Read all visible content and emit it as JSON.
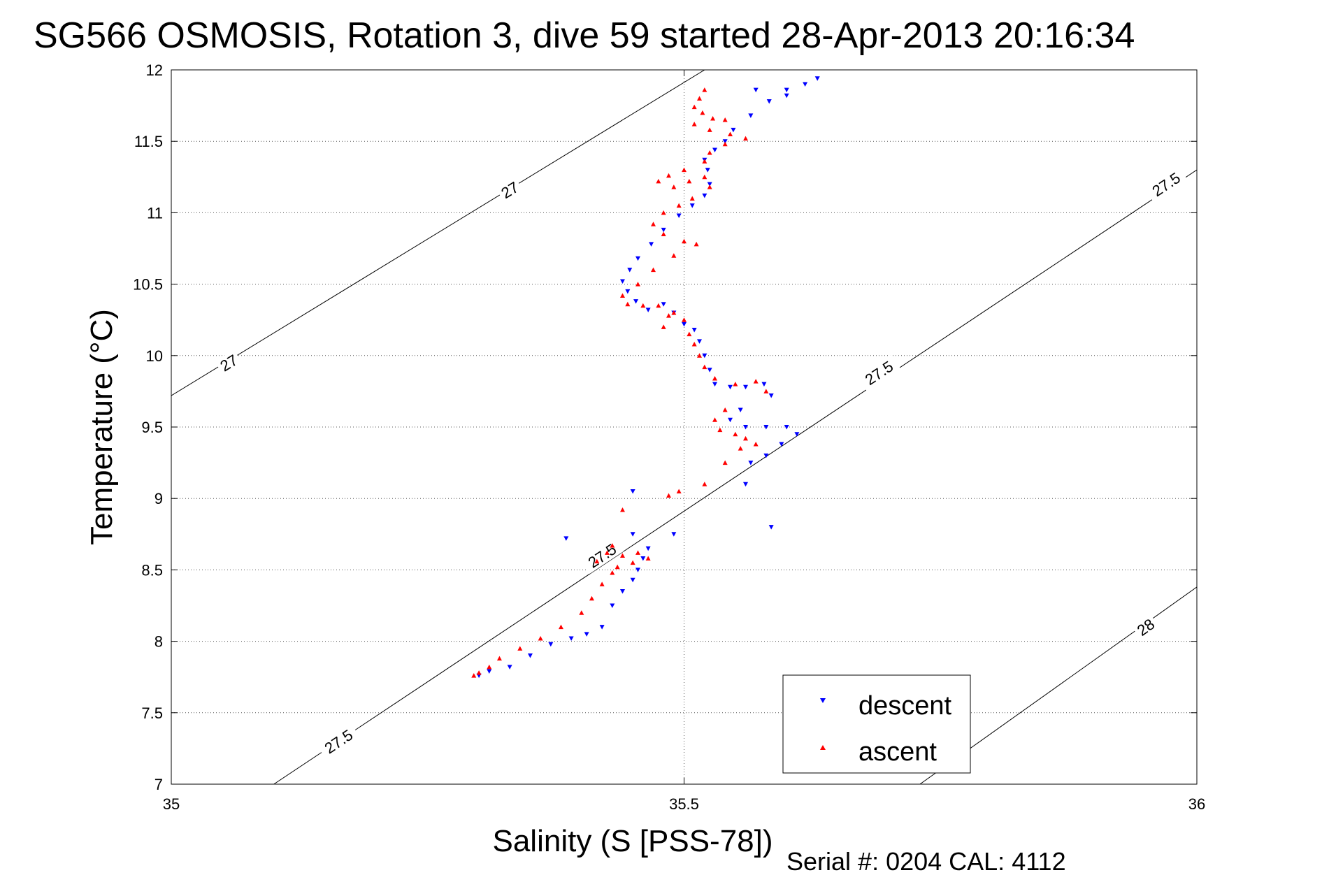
{
  "chart_data": {
    "type": "scatter",
    "title": "SG566 OSMOSIS, Rotation 3, dive 59 started 28-Apr-2013 20:16:34",
    "xlabel": "Salinity (S [PSS-78])",
    "ylabel": "Temperature (°C)",
    "xlim": [
      35,
      36
    ],
    "ylim": [
      7,
      12
    ],
    "x_ticks": [
      "35",
      "35.5",
      "36"
    ],
    "y_ticks": [
      "7",
      "7.5",
      "8",
      "8.5",
      "9",
      "9.5",
      "10",
      "10.5",
      "11",
      "11.5",
      "12"
    ],
    "x_tick_values": [
      35,
      35.5,
      36
    ],
    "y_tick_values": [
      7,
      7.5,
      8,
      8.5,
      9,
      9.5,
      10,
      10.5,
      11,
      11.5,
      12
    ],
    "grid": true,
    "grid_style": "dotted",
    "legend_position": "bottom-right",
    "density_contours": [
      {
        "sigma": 27,
        "label": "27",
        "points": [
          [
            35.0,
            9.72
          ],
          [
            35.52,
            12.0
          ]
        ],
        "label_at": [
          [
            35.056,
            9.95
          ],
          [
            35.33,
            11.16
          ]
        ]
      },
      {
        "sigma": 27.5,
        "label": "27.5",
        "points": [
          [
            35.1,
            7.0
          ],
          [
            36.0,
            11.3
          ]
        ],
        "label_at": [
          [
            35.163,
            7.3
          ],
          [
            35.42,
            8.6
          ],
          [
            35.69,
            9.88
          ],
          [
            35.97,
            11.2
          ]
        ]
      },
      {
        "sigma": 28,
        "label": "28",
        "points": [
          [
            35.73,
            7.0
          ],
          [
            36.0,
            8.38
          ]
        ],
        "label_at": [
          [
            35.95,
            8.1
          ]
        ]
      }
    ],
    "series": [
      {
        "name": "descent",
        "color": "#0000ff",
        "marker": "triangle-down",
        "points": [
          [
            35.63,
            11.94
          ],
          [
            35.618,
            11.9
          ],
          [
            35.6,
            11.86
          ],
          [
            35.583,
            11.78
          ],
          [
            35.565,
            11.68
          ],
          [
            35.548,
            11.58
          ],
          [
            35.54,
            11.5
          ],
          [
            35.53,
            11.44
          ],
          [
            35.52,
            11.37
          ],
          [
            35.523,
            11.3
          ],
          [
            35.525,
            11.2
          ],
          [
            35.52,
            11.12
          ],
          [
            35.508,
            11.05
          ],
          [
            35.495,
            10.98
          ],
          [
            35.48,
            10.88
          ],
          [
            35.468,
            10.78
          ],
          [
            35.455,
            10.68
          ],
          [
            35.447,
            10.6
          ],
          [
            35.44,
            10.52
          ],
          [
            35.445,
            10.45
          ],
          [
            35.453,
            10.38
          ],
          [
            35.465,
            10.32
          ],
          [
            35.48,
            10.36
          ],
          [
            35.49,
            10.3
          ],
          [
            35.5,
            10.22
          ],
          [
            35.51,
            10.18
          ],
          [
            35.515,
            10.1
          ],
          [
            35.52,
            10.0
          ],
          [
            35.525,
            9.9
          ],
          [
            35.53,
            9.8
          ],
          [
            35.545,
            9.78
          ],
          [
            35.56,
            9.78
          ],
          [
            35.578,
            9.8
          ],
          [
            35.585,
            9.72
          ],
          [
            35.555,
            9.62
          ],
          [
            35.545,
            9.55
          ],
          [
            35.56,
            9.5
          ],
          [
            35.58,
            9.5
          ],
          [
            35.6,
            9.5
          ],
          [
            35.61,
            9.45
          ],
          [
            35.595,
            9.38
          ],
          [
            35.58,
            9.3
          ],
          [
            35.565,
            9.25
          ],
          [
            35.56,
            9.1
          ],
          [
            35.385,
            8.72
          ],
          [
            35.45,
            8.75
          ],
          [
            35.465,
            8.65
          ],
          [
            35.46,
            8.58
          ],
          [
            35.455,
            8.5
          ],
          [
            35.45,
            8.43
          ],
          [
            35.44,
            8.35
          ],
          [
            35.43,
            8.25
          ],
          [
            35.42,
            8.1
          ],
          [
            35.405,
            8.05
          ],
          [
            35.39,
            8.02
          ],
          [
            35.37,
            7.98
          ],
          [
            35.35,
            7.9
          ],
          [
            35.33,
            7.82
          ],
          [
            35.31,
            7.79
          ],
          [
            35.3,
            7.76
          ],
          [
            35.585,
            8.8
          ],
          [
            35.49,
            8.75
          ],
          [
            35.45,
            9.05
          ],
          [
            35.6,
            11.82
          ],
          [
            35.57,
            11.86
          ]
        ]
      },
      {
        "name": "ascent",
        "color": "#ff0000",
        "marker": "triangle-up",
        "points": [
          [
            35.52,
            11.86
          ],
          [
            35.515,
            11.8
          ],
          [
            35.51,
            11.74
          ],
          [
            35.518,
            11.7
          ],
          [
            35.528,
            11.66
          ],
          [
            35.54,
            11.65
          ],
          [
            35.51,
            11.62
          ],
          [
            35.525,
            11.58
          ],
          [
            35.545,
            11.55
          ],
          [
            35.56,
            11.52
          ],
          [
            35.54,
            11.48
          ],
          [
            35.525,
            11.42
          ],
          [
            35.52,
            11.36
          ],
          [
            35.5,
            11.3
          ],
          [
            35.485,
            11.26
          ],
          [
            35.475,
            11.22
          ],
          [
            35.49,
            11.18
          ],
          [
            35.505,
            11.22
          ],
          [
            35.52,
            11.25
          ],
          [
            35.525,
            11.18
          ],
          [
            35.508,
            11.1
          ],
          [
            35.495,
            11.05
          ],
          [
            35.48,
            11.0
          ],
          [
            35.47,
            10.92
          ],
          [
            35.48,
            10.85
          ],
          [
            35.5,
            10.8
          ],
          [
            35.512,
            10.78
          ],
          [
            35.49,
            10.7
          ],
          [
            35.47,
            10.6
          ],
          [
            35.455,
            10.5
          ],
          [
            35.44,
            10.42
          ],
          [
            35.445,
            10.36
          ],
          [
            35.46,
            10.35
          ],
          [
            35.475,
            10.35
          ],
          [
            35.485,
            10.28
          ],
          [
            35.48,
            10.2
          ],
          [
            35.49,
            10.3
          ],
          [
            35.5,
            10.25
          ],
          [
            35.505,
            10.15
          ],
          [
            35.51,
            10.08
          ],
          [
            35.515,
            10.0
          ],
          [
            35.52,
            9.92
          ],
          [
            35.53,
            9.84
          ],
          [
            35.55,
            9.8
          ],
          [
            35.57,
            9.82
          ],
          [
            35.58,
            9.75
          ],
          [
            35.54,
            9.62
          ],
          [
            35.53,
            9.55
          ],
          [
            35.535,
            9.48
          ],
          [
            35.55,
            9.45
          ],
          [
            35.56,
            9.42
          ],
          [
            35.57,
            9.38
          ],
          [
            35.555,
            9.35
          ],
          [
            35.54,
            9.25
          ],
          [
            35.52,
            9.1
          ],
          [
            35.495,
            9.05
          ],
          [
            35.485,
            9.02
          ],
          [
            35.44,
            8.92
          ],
          [
            35.43,
            8.67
          ],
          [
            35.425,
            8.62
          ],
          [
            35.44,
            8.6
          ],
          [
            35.455,
            8.62
          ],
          [
            35.465,
            8.58
          ],
          [
            35.45,
            8.55
          ],
          [
            35.435,
            8.52
          ],
          [
            35.415,
            8.56
          ],
          [
            35.43,
            8.48
          ],
          [
            35.42,
            8.4
          ],
          [
            35.41,
            8.3
          ],
          [
            35.4,
            8.2
          ],
          [
            35.38,
            8.1
          ],
          [
            35.36,
            8.02
          ],
          [
            35.34,
            7.95
          ],
          [
            35.32,
            7.88
          ],
          [
            35.31,
            7.82
          ],
          [
            35.3,
            7.78
          ],
          [
            35.295,
            7.76
          ]
        ]
      }
    ]
  },
  "legend": {
    "descent_label": "descent",
    "ascent_label": "ascent"
  },
  "annotation": {
    "serial_text": "Serial #: 0204  CAL: 4112"
  }
}
